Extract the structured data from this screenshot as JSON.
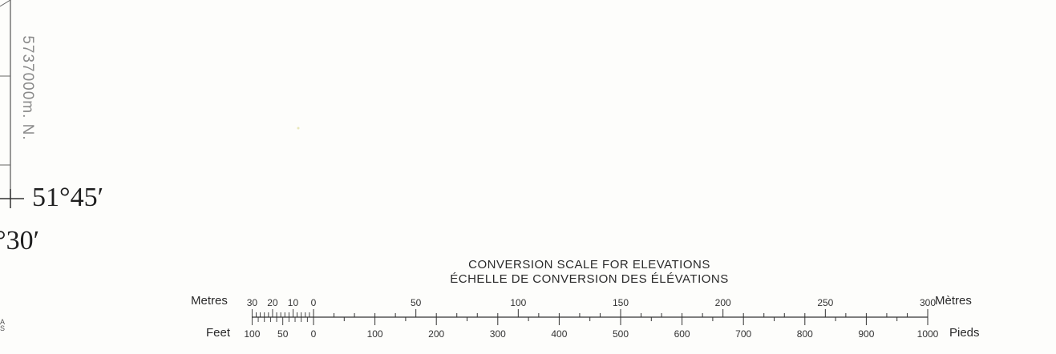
{
  "map_labels": {
    "northing": "5737000m. N.",
    "latitude": "51°45′",
    "longitude": "°30′",
    "edge_letters": [
      "A",
      "S"
    ]
  },
  "scale": {
    "title_en": "CONVERSION SCALE FOR ELEVATIONS",
    "title_fr": "ÉCHELLE DE CONVERSION DES ÉLÉVATIONS",
    "metres_label": "Metres",
    "metres_label_fr": "Mètres",
    "feet_label": "Feet",
    "feet_label_fr": "Pieds",
    "metre_ticks_main": [
      "0",
      "50",
      "100",
      "150",
      "200",
      "250",
      "300"
    ],
    "metre_ticks_sub": [
      "30",
      "20",
      "10"
    ],
    "feet_ticks_main": [
      "0",
      "100",
      "200",
      "300",
      "400",
      "500",
      "600",
      "700",
      "800",
      "900",
      "1000"
    ],
    "feet_ticks_sub": [
      "100",
      "50"
    ],
    "metres_max": 300,
    "feet_max": 1000
  }
}
